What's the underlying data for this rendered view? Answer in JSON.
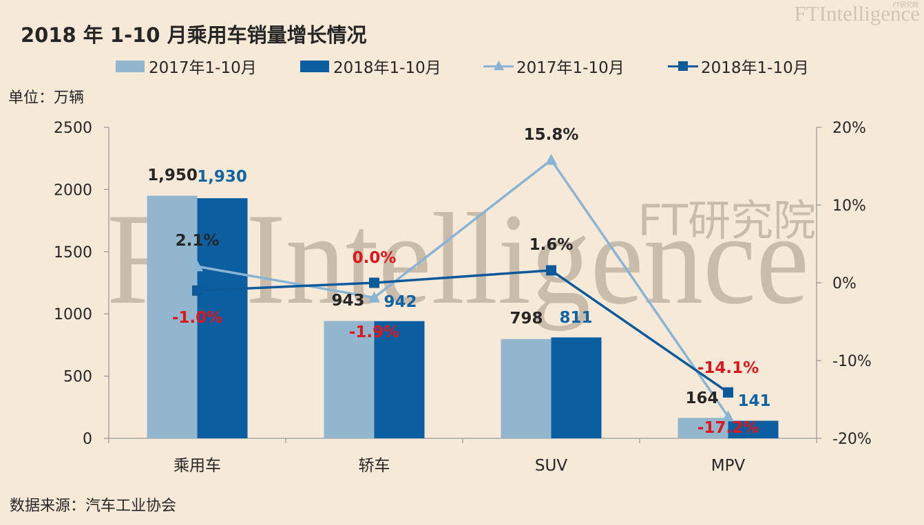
{
  "header": {
    "title": "2018 年 1-10 月乘用车销量增长情况",
    "brand": "FTIntelligence",
    "brand_sub": "FT研究院"
  },
  "watermark": {
    "text": "FTIntelligence",
    "sub": "FT研究院"
  },
  "unit_label": "单位：万辆",
  "source_label": "数据来源：汽车工业协会",
  "colors": {
    "bar_2017": "#93b6cf",
    "bar_2018": "#0b5fa1",
    "line_2017": "#8ab4d4",
    "line_2018": "#0d5a9a",
    "negative_label": "#e0161d",
    "value_label_2018": "#1264a3",
    "text": "#262626",
    "background": "#f6e9d8"
  },
  "chart_data": {
    "type": "bar",
    "title": "2018 年 1-10 月乘用车销量增长情况",
    "categories": [
      "乘用车",
      "轿车",
      "SUV",
      "MPV"
    ],
    "ylim": [
      0,
      2500
    ],
    "yticks": [
      "0",
      "500",
      "1000",
      "1500",
      "2000",
      "2500"
    ],
    "y2lim": [
      -20,
      20
    ],
    "y2ticks": [
      "-20%",
      "-10%",
      "0%",
      "10%",
      "20%"
    ],
    "grid": false,
    "legend_position": "top",
    "series": [
      {
        "name": "2017年1-10月",
        "kind": "bar",
        "values": [
          1950,
          943,
          798,
          164
        ],
        "labels": [
          "1,950",
          "943",
          "798",
          "164"
        ]
      },
      {
        "name": "2018年1-10月",
        "kind": "bar",
        "values": [
          1930,
          942,
          811,
          141
        ],
        "labels": [
          "1,930",
          "942",
          "811",
          "141"
        ]
      },
      {
        "name": "2017年1-10月",
        "kind": "line",
        "axis": "right",
        "marker": "triangle",
        "values": [
          2.1,
          -1.9,
          15.8,
          -17.2
        ],
        "labels": [
          "2.1%",
          "-1.9%",
          "15.8%",
          "-17.2%"
        ]
      },
      {
        "name": "2018年1-10月",
        "kind": "line",
        "axis": "right",
        "marker": "square",
        "values": [
          -1.0,
          0.0,
          1.6,
          -14.1
        ],
        "labels": [
          "-1.0%",
          "0.0%",
          "1.6%",
          "-14.1%"
        ]
      }
    ]
  }
}
